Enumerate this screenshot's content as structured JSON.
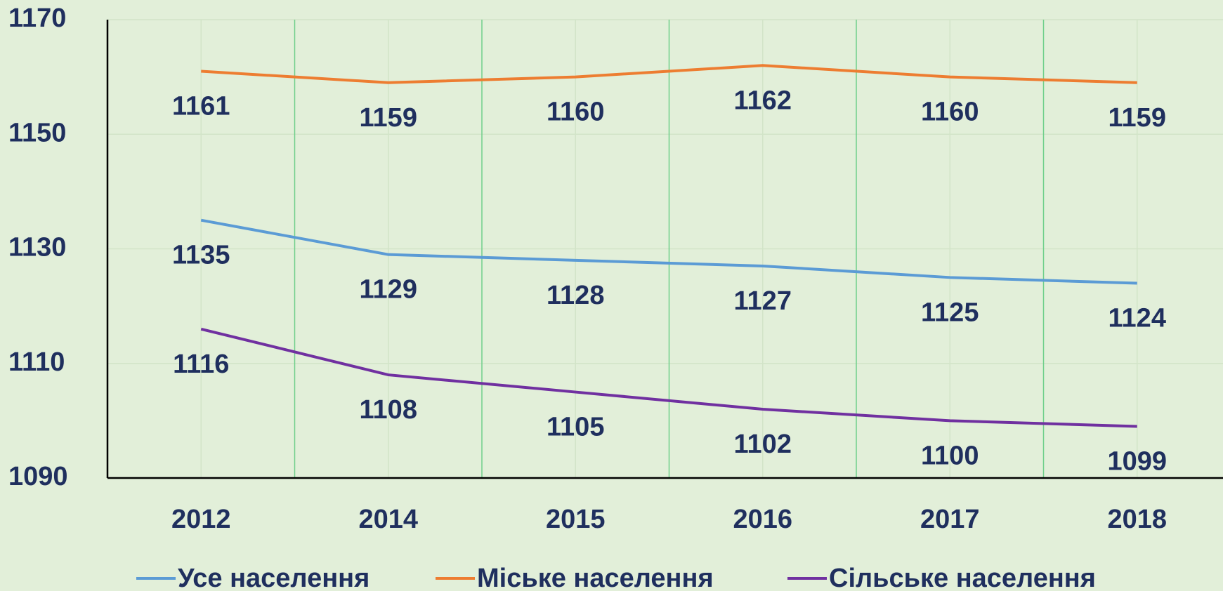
{
  "chart_data": {
    "type": "line",
    "categories": [
      "2012",
      "2014",
      "2015",
      "2016",
      "2017",
      "2018"
    ],
    "series": [
      {
        "name": "Усе населення",
        "color": "#5b9bd5",
        "values": [
          1135,
          1129,
          1128,
          1127,
          1125,
          1124
        ]
      },
      {
        "name": "Міське населення",
        "color": "#ed7d31",
        "values": [
          1161,
          1159,
          1160,
          1162,
          1160,
          1159
        ]
      },
      {
        "name": "Сільське населення",
        "color": "#7030a0",
        "values": [
          1116,
          1108,
          1105,
          1102,
          1100,
          1099
        ]
      }
    ],
    "ylim": [
      1090,
      1170
    ],
    "yticks": [
      1090,
      1110,
      1130,
      1150,
      1170
    ],
    "grid": true,
    "legend": "bottom"
  }
}
